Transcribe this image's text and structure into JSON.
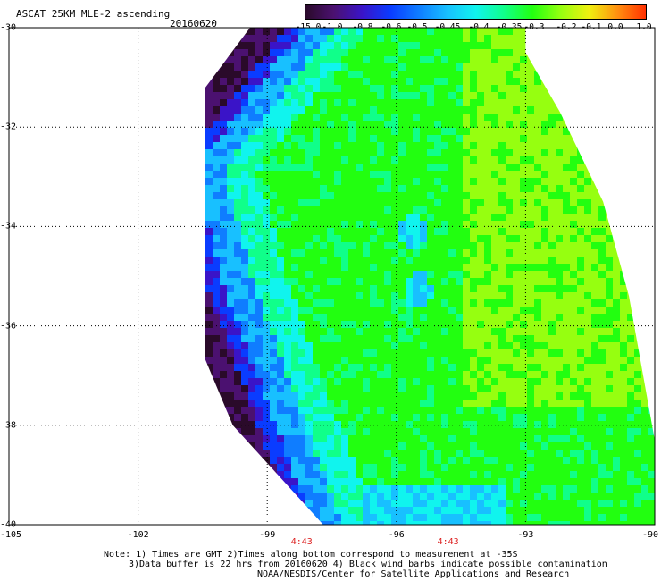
{
  "header": {
    "title": "ASCAT 25KM MLE-2 ascending",
    "date": "20160620"
  },
  "colorbar": {
    "labels": [
      "-15.0",
      "-1.0",
      "-0.8",
      "-0.6",
      "-0.5",
      "-0.45",
      "-0.4",
      "-0.35",
      "-0.3",
      "-0.2",
      "-0.1",
      "0.0",
      "1.0"
    ],
    "colors": [
      "#2a0a2a",
      "#4b1170",
      "#3a14c8",
      "#0a3cff",
      "#0f7dff",
      "#18c0ff",
      "#10f4ee",
      "#10ff8a",
      "#22ff10",
      "#96ff10",
      "#f0f010",
      "#ff9010",
      "#ff3000"
    ]
  },
  "map": {
    "lat_labels": [
      "-30",
      "-32",
      "-34",
      "-36",
      "-38",
      "-40"
    ],
    "lon_labels": [
      "-105",
      "-102",
      "-99",
      "-96",
      "-93",
      "-90"
    ],
    "lat_values": [
      -30,
      -32,
      -34,
      -36,
      -38,
      -40
    ],
    "lon_values": [
      -105,
      -102,
      -99,
      -96,
      -93,
      -90
    ],
    "time_labels": [
      {
        "text": "4:43",
        "lon": -98.2
      },
      {
        "text": "4:43",
        "lon": -94.8
      }
    ]
  },
  "notes": [
    "Note: 1) Times are GMT 2)Times along bottom correspond to measurement at -35S",
    "3)Data buffer is 22 hrs from 20160620 4) Black wind barbs indicate possible contamination",
    "NOAA/NESDIS/Center for Satellite Applications and Research"
  ]
}
